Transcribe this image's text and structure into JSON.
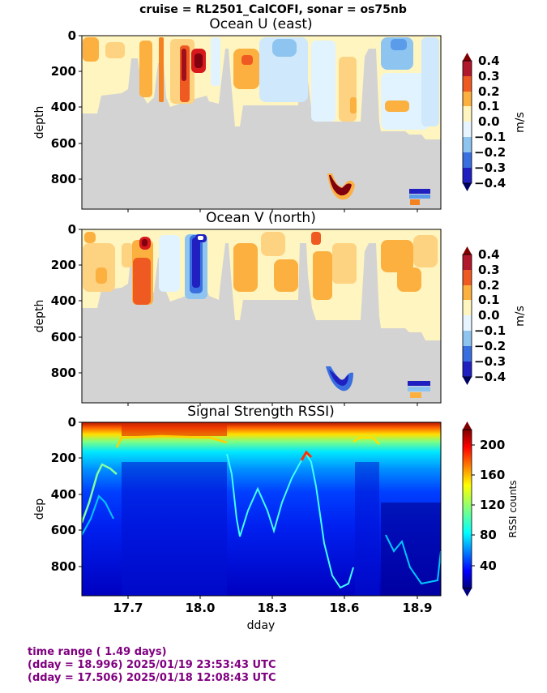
{
  "suptitle": "cruise = RL2501_CalCOFI,  sonar = os75nb",
  "chart_data": [
    {
      "type": "heatmap",
      "title": "Ocean U (east)",
      "ylabel": "depth",
      "xlim": [
        17.506,
        18.996
      ],
      "ylim": [
        960,
        0
      ],
      "yticks": [
        0,
        200,
        400,
        600,
        800
      ],
      "colorbar": {
        "label": "m/s",
        "ticks": [
          "0.4",
          "0.3",
          "0.2",
          "0.1",
          "0.0",
          "−0.1",
          "−0.2",
          "−0.3",
          "−0.4"
        ]
      },
      "features": [
        {
          "x": [
            17.84,
            17.9
          ],
          "depth": [
            60,
            290
          ],
          "value": 0.35
        },
        {
          "x": [
            17.93,
            17.98
          ],
          "depth": [
            80,
            180
          ],
          "value": 0.38
        },
        {
          "x": [
            18.52,
            18.63
          ],
          "depth": [
            770,
            890
          ],
          "value": 0.38
        },
        {
          "x": [
            18.88,
            18.97
          ],
          "depth": [
            860,
            940
          ],
          "value": -0.35
        }
      ]
    },
    {
      "type": "heatmap",
      "title": "Ocean V (north)",
      "ylabel": "depth",
      "xlim": [
        17.506,
        18.996
      ],
      "ylim": [
        960,
        0
      ],
      "yticks": [
        0,
        200,
        400,
        600,
        800
      ],
      "colorbar": {
        "label": "m/s",
        "ticks": [
          "0.4",
          "0.3",
          "0.2",
          "0.1",
          "0.0",
          "−0.1",
          "−0.2",
          "−0.3",
          "−0.4"
        ]
      },
      "features": [
        {
          "x": [
            17.72,
            17.79
          ],
          "depth": [
            60,
            420
          ],
          "value": 0.3
        },
        {
          "x": [
            17.96,
            18.02
          ],
          "depth": [
            40,
            360
          ],
          "value": -0.35
        },
        {
          "x": [
            18.52,
            18.63
          ],
          "depth": [
            790,
            890
          ],
          "value": -0.3
        },
        {
          "x": [
            18.88,
            18.97
          ],
          "depth": [
            860,
            940
          ],
          "value": -0.3
        }
      ]
    },
    {
      "type": "heatmap",
      "title": "Signal Strength RSSI)",
      "ylabel": "dep",
      "xlabel": "dday",
      "xlim": [
        17.506,
        18.996
      ],
      "ylim": [
        960,
        0
      ],
      "yticks": [
        0,
        200,
        400,
        600,
        800
      ],
      "xticks": [
        "17.7",
        "18.0",
        "18.3",
        "18.6",
        "18.9"
      ],
      "colorbar": {
        "label": "RSSI counts",
        "ticks": [
          "200",
          "160",
          "120",
          "80",
          "40"
        ]
      }
    }
  ],
  "footer": {
    "line1": "time range ( 1.49 days)",
    "line2": "(dday = 18.996) 2025/01/19 23:53:43 UTC",
    "line3": "(dday = 17.506) 2025/01/18 12:08:43 UTC"
  }
}
